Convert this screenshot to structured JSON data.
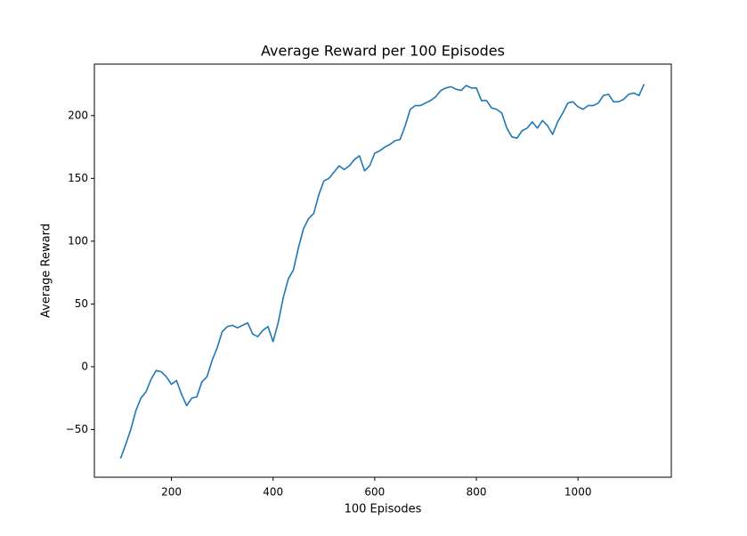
{
  "chart_data": {
    "type": "line",
    "title": "Average Reward per 100 Episodes",
    "xlabel": "100 Episodes",
    "ylabel": "Average Reward",
    "x": [
      100,
      110,
      120,
      130,
      140,
      150,
      160,
      170,
      180,
      190,
      200,
      210,
      220,
      230,
      240,
      250,
      260,
      270,
      280,
      290,
      300,
      310,
      320,
      330,
      340,
      350,
      360,
      370,
      380,
      390,
      400,
      410,
      420,
      430,
      440,
      450,
      460,
      470,
      480,
      490,
      500,
      510,
      520,
      530,
      540,
      550,
      560,
      570,
      580,
      590,
      600,
      610,
      620,
      630,
      640,
      650,
      660,
      670,
      680,
      690,
      700,
      710,
      720,
      730,
      740,
      750,
      760,
      770,
      780,
      790,
      800,
      810,
      820,
      830,
      840,
      850,
      860,
      870,
      880,
      890,
      900,
      910,
      920,
      930,
      940,
      950,
      960,
      970,
      980,
      990,
      1000,
      1010,
      1020,
      1030,
      1040,
      1050,
      1060,
      1070,
      1080,
      1090,
      1100,
      1110,
      1120,
      1130
    ],
    "series": [
      {
        "name": "Average Reward",
        "color": "#1f77b4",
        "values": [
          -73,
          -62,
          -50,
          -35,
          -25,
          -20,
          -10,
          -3,
          -4,
          -8,
          -14,
          -11,
          -22,
          -31,
          -25,
          -24,
          -12,
          -8,
          5,
          15,
          28,
          32,
          33,
          31,
          33,
          35,
          26,
          24,
          29,
          32,
          20,
          35,
          55,
          70,
          77,
          95,
          110,
          118,
          122,
          137,
          148,
          150,
          155,
          160,
          157,
          160,
          165,
          168,
          156,
          160,
          170,
          172,
          175,
          177,
          180,
          181,
          192,
          205,
          208,
          208,
          210,
          212,
          215,
          220,
          222,
          223,
          221,
          220,
          224,
          222,
          222,
          212,
          212,
          206,
          205,
          202,
          190,
          183,
          182,
          188,
          190,
          195,
          190,
          196,
          192,
          185,
          195,
          202,
          210,
          211,
          207,
          205,
          208,
          208,
          210,
          216,
          217,
          211,
          211,
          213,
          217,
          218,
          216,
          225
        ]
      }
    ],
    "xlim": [
      48.4,
      1183.6
    ],
    "ylim": [
      -88,
      241
    ],
    "xticks": [
      200,
      400,
      600,
      800,
      1000
    ],
    "yticks": [
      {
        "value": -50,
        "label": "−50"
      },
      0,
      50,
      100,
      150,
      200
    ]
  }
}
